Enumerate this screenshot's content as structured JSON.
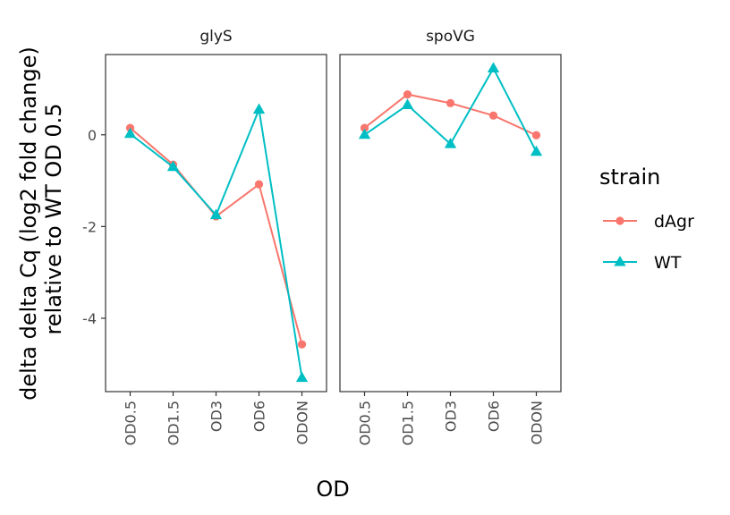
{
  "chart_data": {
    "type": "line",
    "xlabel": "OD",
    "ylabel_lines": [
      "delta delta Cq (log2 fold change)",
      "relative to WT OD 0.5"
    ],
    "categories": [
      "OD0.5",
      "OD1.5",
      "OD3",
      "OD6",
      "ODON"
    ],
    "ylim": [
      -5.6,
      1.75
    ],
    "yticks": [
      0,
      -2,
      -4
    ],
    "ytick_labels": [
      "0",
      "-2",
      "-4"
    ],
    "grid": false,
    "legend": {
      "title": "strain",
      "placement": "right",
      "entries": [
        {
          "name": "dAgr",
          "color": "#F8766D",
          "shape": "circle"
        },
        {
          "name": "WT",
          "color": "#00BFC4",
          "shape": "triangle"
        }
      ]
    },
    "facets": [
      {
        "title": "glyS",
        "series": [
          {
            "name": "dAgr",
            "values": [
              0.15,
              -0.65,
              -1.78,
              -1.08,
              -4.57
            ]
          },
          {
            "name": "WT",
            "values": [
              0.02,
              -0.7,
              -1.75,
              0.55,
              -5.3
            ]
          }
        ]
      },
      {
        "title": "spoVG",
        "series": [
          {
            "name": "dAgr",
            "values": [
              0.15,
              0.88,
              0.69,
              0.42,
              -0.01
            ]
          },
          {
            "name": "WT",
            "values": [
              0.0,
              0.65,
              -0.2,
              1.45,
              -0.37
            ]
          }
        ]
      }
    ]
  }
}
